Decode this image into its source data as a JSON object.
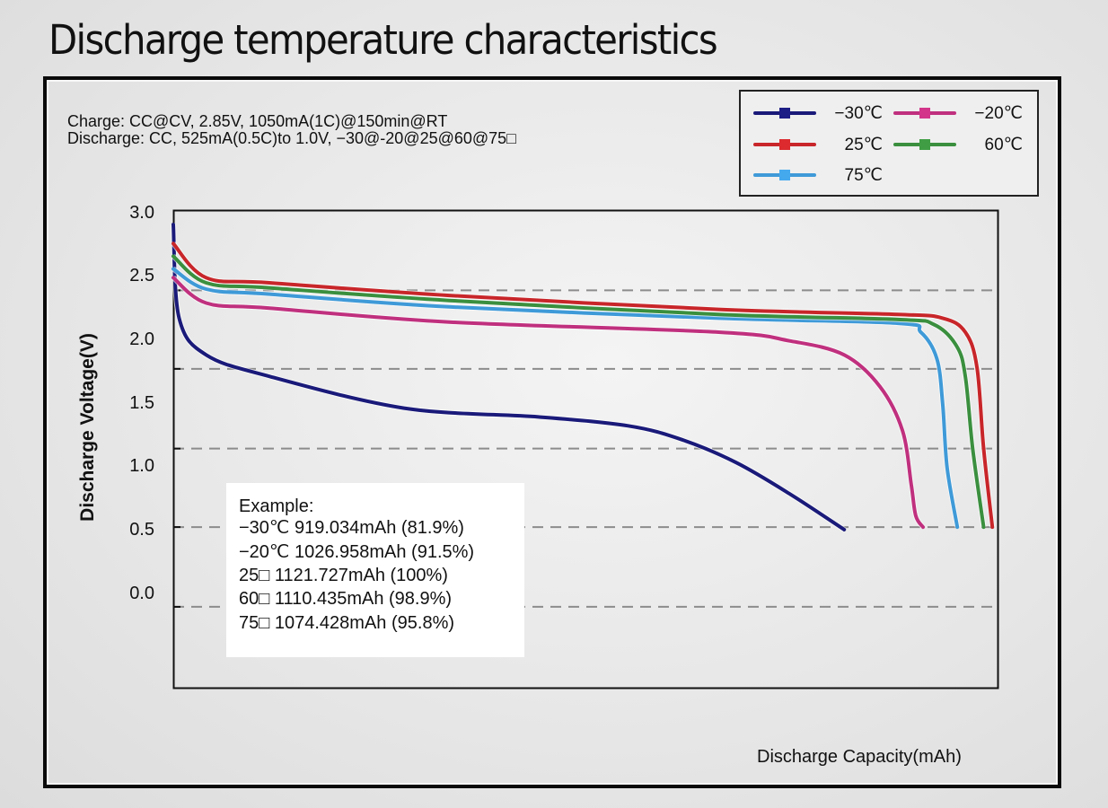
{
  "page_title": "Discharge temperature characteristics",
  "conditions": {
    "charge": "Charge: CC@CV, 2.85V, 1050mA(1C)@150min@RT",
    "discharge": "Discharge: CC, 525mA(0.5C)to 1.0V, −30@-20@25@60@75□"
  },
  "example_box": {
    "title": "Example:",
    "lines": [
      "−30℃  919.034mAh  (81.9%)",
      "−20℃  1026.958mAh  (91.5%)",
      "25□  1121.727mAh  (100%)",
      "60□  1110.435mAh  (98.9%)",
      "75□  1074.428mAh  (95.8%)"
    ]
  },
  "chart_data": {
    "type": "line",
    "title": "Discharge temperature characteristics",
    "xlabel": "Discharge Capacity(mAh)",
    "ylabel": "Discharge Voltage(V)",
    "xlim": [
      0,
      1130
    ],
    "ylim": [
      -0.75,
      3.0
    ],
    "y_ticks": [
      "3.0",
      "2.5",
      "2.0",
      "1.5",
      "1.0",
      "0.5",
      "0.0"
    ],
    "y_tick_values": [
      3.0,
      2.5,
      2.0,
      1.5,
      1.0,
      0.5,
      0.0
    ],
    "x_ticks": [],
    "grid": "dashed horizontal",
    "gridline_values": [
      2.38,
      1.76,
      1.13,
      0.51,
      -0.12
    ],
    "legend_position": "top-right",
    "series": [
      {
        "name": "−30℃",
        "color": "#1a1a7a",
        "x": [
          0,
          8,
          45,
          132,
          316,
          500,
          623,
          697,
          771,
          845,
          919
        ],
        "y": [
          2.9,
          2.16,
          1.87,
          1.7,
          1.45,
          1.38,
          1.31,
          1.2,
          1.02,
          0.77,
          0.49
        ]
      },
      {
        "name": "−20℃",
        "color": "#c0307e",
        "x": [
          0,
          45,
          132,
          378,
          747,
          845,
          919,
          968,
          999,
          1011,
          1017,
          1027
        ],
        "y": [
          2.48,
          2.28,
          2.24,
          2.13,
          2.05,
          1.98,
          1.87,
          1.62,
          1.27,
          0.84,
          0.6,
          0.51
        ]
      },
      {
        "name": "25℃",
        "color": "#c8262a",
        "x": [
          0,
          45,
          132,
          378,
          747,
          993,
          1054,
          1085,
          1101,
          1110,
          1122
        ],
        "y": [
          2.75,
          2.48,
          2.44,
          2.34,
          2.23,
          2.19,
          2.16,
          2.05,
          1.77,
          1.13,
          0.51
        ]
      },
      {
        "name": "60℃",
        "color": "#3a8f3e",
        "x": [
          0,
          45,
          132,
          378,
          747,
          993,
          1042,
          1073,
          1085,
          1095,
          1110
        ],
        "y": [
          2.65,
          2.44,
          2.4,
          2.3,
          2.19,
          2.15,
          2.11,
          1.94,
          1.7,
          1.13,
          0.51
        ]
      },
      {
        "name": "75℃",
        "color": "#3f9ad8",
        "x": [
          0,
          45,
          132,
          378,
          747,
          993,
          1024,
          1046,
          1054,
          1060,
          1074
        ],
        "y": [
          2.55,
          2.39,
          2.35,
          2.25,
          2.16,
          2.12,
          2.05,
          1.84,
          1.48,
          0.98,
          0.51
        ]
      }
    ]
  }
}
